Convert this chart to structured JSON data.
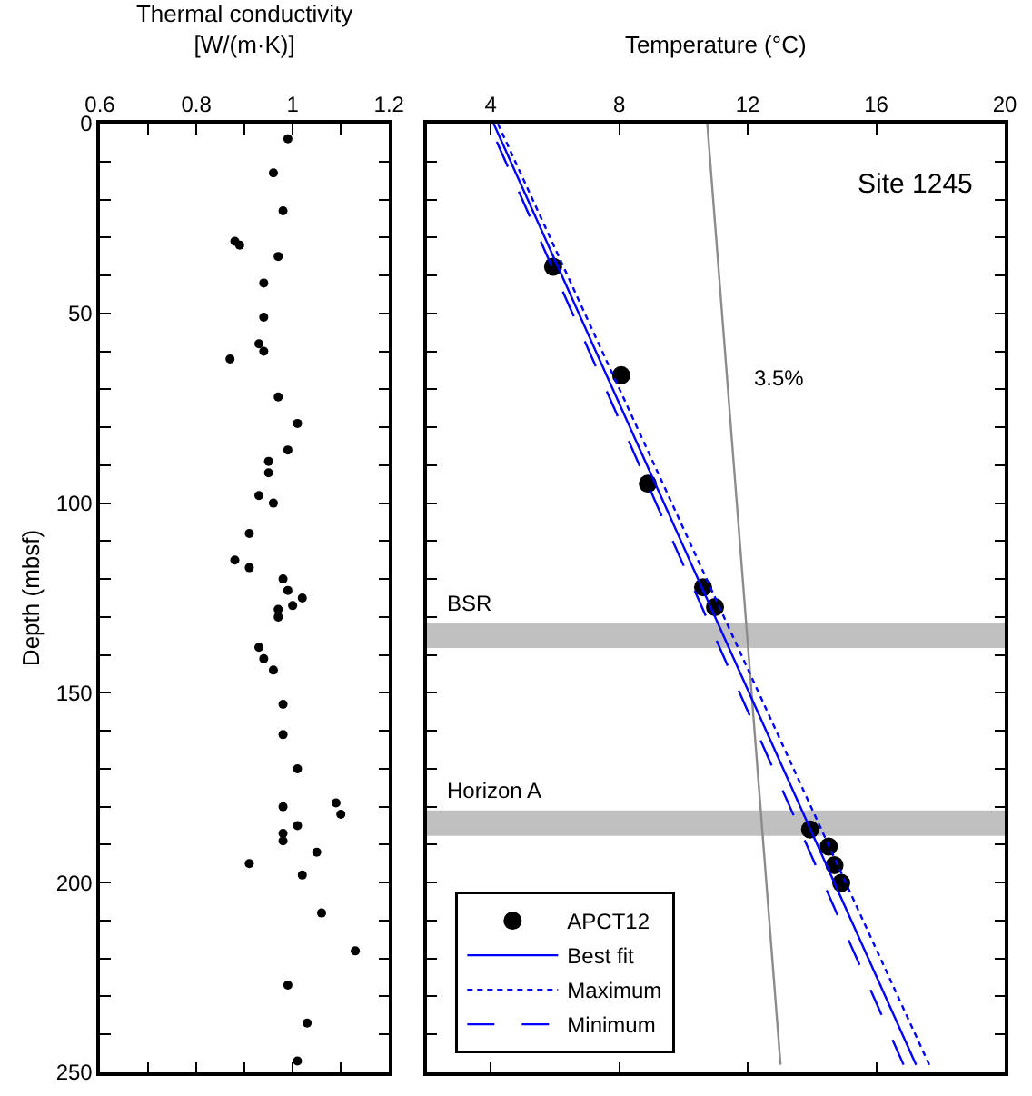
{
  "chart_data": [
    {
      "type": "scatter",
      "xlabel": "Thermal conductivity\n[W/(m·K)]",
      "ylabel": "Depth (mbsf)",
      "marker": "circle",
      "grid": false,
      "legend": false,
      "xlim": [
        0.6,
        1.2
      ],
      "xticks": [
        0.6,
        {
          "value": 0.7,
          "label": null
        },
        0.8,
        {
          "value": 0.9,
          "label": null
        },
        1,
        {
          "value": 1.1,
          "label": null
        },
        1.2
      ],
      "ylim": [
        250,
        0
      ],
      "yticks": [
        0,
        {
          "value": 10,
          "label": null
        },
        {
          "value": 20,
          "label": null
        },
        {
          "value": 30,
          "label": null
        },
        {
          "value": 40,
          "label": null
        },
        50,
        {
          "value": 60,
          "label": null
        },
        {
          "value": 70,
          "label": null
        },
        {
          "value": 80,
          "label": null
        },
        {
          "value": 90,
          "label": null
        },
        100,
        {
          "value": 110,
          "label": null
        },
        {
          "value": 120,
          "label": null
        },
        {
          "value": 130,
          "label": null
        },
        {
          "value": 140,
          "label": null
        },
        150,
        {
          "value": 160,
          "label": null
        },
        {
          "value": 170,
          "label": null
        },
        {
          "value": 180,
          "label": null
        },
        {
          "value": 190,
          "label": null
        },
        200,
        {
          "value": 210,
          "label": null
        },
        {
          "value": 220,
          "label": null
        },
        {
          "value": 230,
          "label": null
        },
        {
          "value": 240,
          "label": null
        },
        250
      ],
      "series": [
        {
          "color": "#000000",
          "x": [
            0.99,
            0.96,
            0.98,
            0.88,
            0.89,
            0.97,
            0.94,
            0.94,
            0.93,
            0.94,
            0.87,
            0.97,
            1.01,
            0.99,
            0.95,
            0.95,
            0.93,
            0.96,
            0.91,
            0.88,
            0.91,
            0.98,
            0.99,
            1.02,
            1.0,
            0.97,
            0.97,
            0.93,
            0.94,
            0.96,
            0.98,
            0.98,
            1.01,
            0.98,
            1.09,
            1.1,
            1.01,
            0.98,
            0.98,
            1.05,
            0.91,
            1.02,
            1.06,
            1.13,
            0.99,
            1.03,
            1.01
          ],
          "values": [
            4,
            13,
            23,
            31,
            32,
            35,
            42,
            51,
            58,
            60,
            62,
            72,
            79,
            86,
            89,
            92,
            98,
            100,
            108,
            115,
            117,
            120,
            123,
            125,
            127,
            128,
            130,
            138,
            141,
            144,
            153,
            161,
            170,
            180,
            179,
            182,
            185,
            187,
            189,
            192,
            195,
            198,
            208,
            218,
            227,
            237,
            247
          ]
        }
      ]
    },
    {
      "type": "scatter",
      "xlabel": "Temperature (°C)",
      "grid": false,
      "legend": "bottom left",
      "tick_labels": "x",
      "xlim": [
        2,
        20
      ],
      "xticks": [
        4,
        8,
        12,
        16,
        20
      ],
      "ylim": [
        250,
        0
      ],
      "yticks": [
        {
          "value": 0,
          "label": null
        },
        {
          "value": 10,
          "label": null
        },
        {
          "value": 20,
          "label": null
        },
        {
          "value": 30,
          "label": null
        },
        {
          "value": 40,
          "label": null
        },
        {
          "value": 50,
          "label": null
        },
        {
          "value": 60,
          "label": null
        },
        {
          "value": 70,
          "label": null
        },
        {
          "value": 80,
          "label": null
        },
        {
          "value": 90,
          "label": null
        },
        {
          "value": 100,
          "label": null
        },
        {
          "value": 110,
          "label": null
        },
        {
          "value": 120,
          "label": null
        },
        {
          "value": 130,
          "label": null
        },
        {
          "value": 140,
          "label": null
        },
        {
          "value": 150,
          "label": null
        },
        {
          "value": 160,
          "label": null
        },
        {
          "value": 170,
          "label": null
        },
        {
          "value": 180,
          "label": null
        },
        {
          "value": 190,
          "label": null
        },
        {
          "value": 200,
          "label": null
        },
        {
          "value": 210,
          "label": null
        },
        {
          "value": 220,
          "label": null
        },
        {
          "value": 230,
          "label": null
        },
        {
          "value": 240,
          "label": null
        },
        {
          "value": 250,
          "label": null
        }
      ],
      "annotations": [
        "Site 1245",
        "3.5%"
      ],
      "bands": [
        {
          "axis": "y",
          "from": 131.5,
          "to": 138.2,
          "label": "BSR",
          "color": "#c0c0c0"
        },
        {
          "axis": "y",
          "from": 181,
          "to": 187.7,
          "label": "Horizon A",
          "color": "#c0c0c0"
        }
      ],
      "series": [
        {
          "type": "line",
          "color": "#8c8c8c",
          "line_style": "solid",
          "x": [
            10.74,
            13.02
          ],
          "values": [
            0,
            248
          ]
        },
        {
          "name": "APCT12",
          "type": "scatter",
          "marker": "circle",
          "color": "#000000",
          "x": [
            5.94,
            8.06,
            8.89,
            10.61,
            10.98,
            13.94,
            14.52,
            14.7,
            14.91
          ],
          "values": [
            37.7,
            66.3,
            94.9,
            122.2,
            127.4,
            186,
            190.5,
            195.4,
            200.1
          ]
        },
        {
          "name": "Best fit",
          "type": "line",
          "color": "#0000ff",
          "line_style": "solid",
          "x": [
            4.09,
            17.24
          ],
          "values": [
            0,
            248
          ]
        },
        {
          "name": "Maximum",
          "type": "line",
          "color": "#0000ff",
          "line_style": "dotted",
          "x": [
            17.65,
            4.22
          ],
          "values": [
            248,
            0
          ]
        },
        {
          "name": "Minimum",
          "type": "line",
          "color": "#0000ff",
          "line_style": "dashed",
          "x": [
            16.85,
            3.94
          ],
          "values": [
            248,
            0
          ]
        }
      ]
    }
  ]
}
